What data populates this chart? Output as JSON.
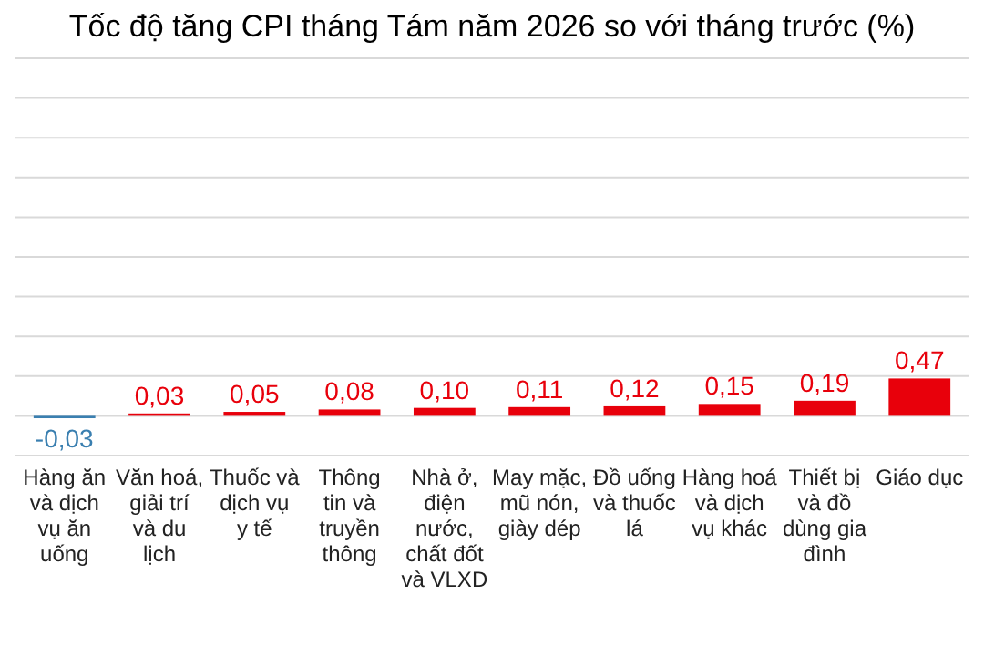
{
  "chart_data": {
    "type": "bar",
    "title": "Tốc độ tăng CPI tháng Tám năm 2026 so với tháng trước (%)",
    "categories": [
      "Hàng ăn và dịch vụ ăn uống",
      "Văn hoá, giải trí và du lịch",
      "Thuốc và dịch vụ y tế",
      "Thông tin và truyền thông",
      "Nhà ở, điện nước, chất đốt và VLXD",
      "May mặc, mũ nón, giày dép",
      "Đồ uống và thuốc lá",
      "Hàng hoá và dịch vụ khác",
      "Thiết bị và đồ dùng gia đình",
      "Giáo dục"
    ],
    "values": [
      -0.03,
      0.03,
      0.05,
      0.08,
      0.1,
      0.11,
      0.12,
      0.15,
      0.19,
      0.47
    ],
    "value_labels": [
      "-0,03",
      "0,03",
      "0,05",
      "0,08",
      "0,10",
      "0,11",
      "0,12",
      "0,15",
      "0,19",
      "0,47"
    ],
    "colors": [
      "#3a7fb0",
      "#e8000b",
      "#e8000b",
      "#e8000b",
      "#e8000b",
      "#e8000b",
      "#e8000b",
      "#e8000b",
      "#e8000b",
      "#e8000b"
    ],
    "ylim": [
      -0.5,
      4.5
    ],
    "yticks": [
      {
        "value": -0.5,
        "label": null
      },
      {
        "value": 0,
        "label": null
      },
      {
        "value": 0.5,
        "label": null
      },
      {
        "value": 1,
        "label": null
      },
      {
        "value": 1.5,
        "label": null
      },
      {
        "value": 2,
        "label": null
      },
      {
        "value": 2.5,
        "label": null
      },
      {
        "value": 3,
        "label": null
      },
      {
        "value": 3.5,
        "label": null
      },
      {
        "value": 4,
        "label": null
      },
      {
        "value": 4.5,
        "label": null
      }
    ],
    "grid": "y",
    "tick_labels": "x"
  }
}
